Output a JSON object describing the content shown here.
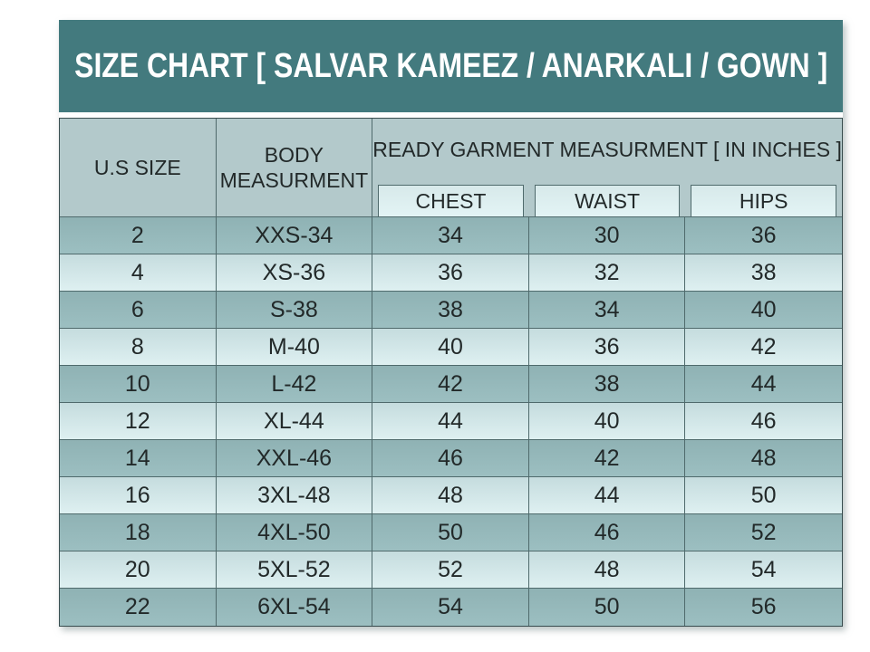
{
  "title": "SIZE CHART [ SALVAR KAMEEZ / ANARKALI / GOWN ]",
  "table": {
    "headers": {
      "us_size": "U.S SIZE",
      "body_measurement": "BODY MEASURMENT",
      "ready_garment_group": "READY GARMENT MEASURMENT [ IN INCHES ]",
      "chest": "CHEST",
      "waist": "WAIST",
      "hips": "HIPS"
    },
    "rows": [
      {
        "us_size": "2",
        "body": "XXS-34",
        "chest": "34",
        "waist": "30",
        "hips": "36"
      },
      {
        "us_size": "4",
        "body": "XS-36",
        "chest": "36",
        "waist": "32",
        "hips": "38"
      },
      {
        "us_size": "6",
        "body": "S-38",
        "chest": "38",
        "waist": "34",
        "hips": "40"
      },
      {
        "us_size": "8",
        "body": "M-40",
        "chest": "40",
        "waist": "36",
        "hips": "42"
      },
      {
        "us_size": "10",
        "body": "L-42",
        "chest": "42",
        "waist": "38",
        "hips": "44"
      },
      {
        "us_size": "12",
        "body": "XL-44",
        "chest": "44",
        "waist": "40",
        "hips": "46"
      },
      {
        "us_size": "14",
        "body": "XXL-46",
        "chest": "46",
        "waist": "42",
        "hips": "48"
      },
      {
        "us_size": "16",
        "body": "3XL-48",
        "chest": "48",
        "waist": "44",
        "hips": "50"
      },
      {
        "us_size": "18",
        "body": "4XL-50",
        "chest": "50",
        "waist": "46",
        "hips": "52"
      },
      {
        "us_size": "20",
        "body": "5XL-52",
        "chest": "52",
        "waist": "48",
        "hips": "54"
      },
      {
        "us_size": "22",
        "body": "6XL-54",
        "chest": "54",
        "waist": "50",
        "hips": "56"
      }
    ]
  },
  "colors": {
    "banner_bg": "#437A7E",
    "header_bg": "#B3C9CB",
    "subheader_bg": "#DCEDEE",
    "row_dark": "#95B8BA",
    "row_light": "#CFE5E7",
    "border": "#4F6A6C",
    "title_text": "#FFFFFF",
    "cell_text": "#222929"
  }
}
